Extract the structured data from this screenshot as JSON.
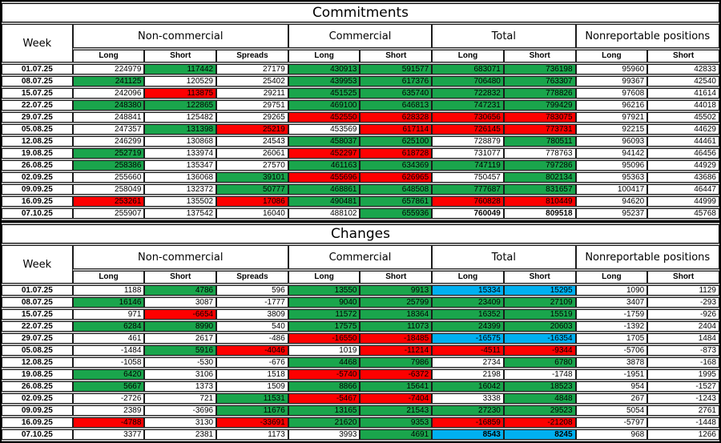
{
  "colors": {
    "green": "#1aa54c",
    "red": "#fe0000",
    "blue": "#00b0f0",
    "white": "#ffffff"
  },
  "sections": [
    {
      "title": "Commitments",
      "week_header": "Week",
      "groups": [
        {
          "label": "Non-commercial"
        },
        {
          "label": "Commercial"
        },
        {
          "label": "Total"
        },
        {
          "label": "Nonreportable positions"
        }
      ],
      "subheaders": [
        "Long",
        "Short",
        "Spreads",
        "Long",
        "Short",
        "Long",
        "Short",
        "Long",
        "Short"
      ],
      "rows": [
        {
          "week": "01.07.25",
          "values": [
            "224979",
            "117442",
            "27179",
            "430913",
            "591577",
            "683071",
            "736198",
            "95960",
            "42833"
          ],
          "fills": [
            "w",
            "g",
            "w",
            "g",
            "g",
            "g",
            "g",
            "w",
            "w"
          ],
          "bold": []
        },
        {
          "week": "08.07.25",
          "values": [
            "241125",
            "120529",
            "25402",
            "439953",
            "617376",
            "706480",
            "763307",
            "99367",
            "42540"
          ],
          "fills": [
            "g",
            "w",
            "w",
            "g",
            "g",
            "g",
            "g",
            "w",
            "w"
          ],
          "bold": []
        },
        {
          "week": "15.07.25",
          "values": [
            "242096",
            "113875",
            "29211",
            "451525",
            "635740",
            "722832",
            "778826",
            "97608",
            "41614"
          ],
          "fills": [
            "w",
            "r",
            "w",
            "g",
            "g",
            "g",
            "g",
            "w",
            "w"
          ],
          "bold": []
        },
        {
          "week": "22.07.25",
          "values": [
            "248380",
            "122865",
            "29751",
            "469100",
            "646813",
            "747231",
            "799429",
            "96216",
            "44018"
          ],
          "fills": [
            "g",
            "g",
            "w",
            "g",
            "g",
            "g",
            "g",
            "w",
            "w"
          ],
          "bold": []
        },
        {
          "week": "29.07.25",
          "values": [
            "248841",
            "125482",
            "29265",
            "452550",
            "628328",
            "730656",
            "783075",
            "97921",
            "45502"
          ],
          "fills": [
            "w",
            "w",
            "w",
            "r",
            "r",
            "r",
            "r",
            "w",
            "w"
          ],
          "bold": []
        },
        {
          "week": "05.08.25",
          "values": [
            "247357",
            "131398",
            "25219",
            "453569",
            "617114",
            "726145",
            "773731",
            "92215",
            "44629"
          ],
          "fills": [
            "w",
            "g",
            "r",
            "w",
            "r",
            "r",
            "r",
            "w",
            "w"
          ],
          "bold": []
        },
        {
          "week": "12.08.25",
          "values": [
            "246299",
            "130868",
            "24543",
            "458037",
            "625100",
            "728879",
            "780511",
            "96093",
            "44461"
          ],
          "fills": [
            "w",
            "w",
            "w",
            "g",
            "g",
            "w",
            "g",
            "w",
            "w"
          ],
          "bold": []
        },
        {
          "week": "19.08.25",
          "values": [
            "252719",
            "133974",
            "26061",
            "452297",
            "618728",
            "731077",
            "778763",
            "94142",
            "46456"
          ],
          "fills": [
            "g",
            "w",
            "w",
            "r",
            "r",
            "w",
            "w",
            "w",
            "w"
          ],
          "bold": []
        },
        {
          "week": "26.08.25",
          "values": [
            "258386",
            "135347",
            "27570",
            "461163",
            "634369",
            "747119",
            "797286",
            "95096",
            "44929"
          ],
          "fills": [
            "g",
            "w",
            "w",
            "g",
            "g",
            "g",
            "g",
            "w",
            "w"
          ],
          "bold": []
        },
        {
          "week": "02.09.25",
          "values": [
            "255660",
            "136068",
            "39101",
            "455696",
            "626965",
            "750457",
            "802134",
            "95363",
            "43686"
          ],
          "fills": [
            "w",
            "w",
            "g",
            "r",
            "r",
            "w",
            "g",
            "w",
            "w"
          ],
          "bold": []
        },
        {
          "week": "09.09.25",
          "values": [
            "258049",
            "132372",
            "50777",
            "468861",
            "648508",
            "777687",
            "831657",
            "100417",
            "46447"
          ],
          "fills": [
            "w",
            "w",
            "g",
            "g",
            "g",
            "g",
            "g",
            "w",
            "w"
          ],
          "bold": []
        },
        {
          "week": "16.09.25",
          "values": [
            "253261",
            "135502",
            "17086",
            "490481",
            "657861",
            "760828",
            "810449",
            "94620",
            "44999"
          ],
          "fills": [
            "r",
            "w",
            "r",
            "g",
            "g",
            "r",
            "r",
            "w",
            "w"
          ],
          "bold": []
        },
        {
          "week": "07.10.25",
          "values": [
            "255907",
            "137542",
            "16040",
            "488102",
            "655936",
            "760049",
            "809518",
            "95237",
            "45768"
          ],
          "fills": [
            "w",
            "w",
            "w",
            "w",
            "g",
            "w",
            "w",
            "w",
            "w"
          ],
          "bold": [
            5,
            6
          ]
        }
      ]
    },
    {
      "title": "Changes",
      "week_header": "Week",
      "groups": [
        {
          "label": "Non-commercial"
        },
        {
          "label": "Commercial"
        },
        {
          "label": "Total"
        },
        {
          "label": "Nonreportable positions"
        }
      ],
      "subheaders": [
        "Long",
        "Short",
        "Spreads",
        "Long",
        "Short",
        "Long",
        "Short",
        "Long",
        "Short"
      ],
      "rows": [
        {
          "week": "01.07.25",
          "values": [
            "1188",
            "4786",
            "596",
            "13550",
            "9913",
            "15334",
            "15295",
            "1090",
            "1129"
          ],
          "fills": [
            "w",
            "g",
            "w",
            "g",
            "g",
            "b",
            "b",
            "w",
            "w"
          ],
          "bold": []
        },
        {
          "week": "08.07.25",
          "values": [
            "16146",
            "3087",
            "-1777",
            "9040",
            "25799",
            "23409",
            "27109",
            "3407",
            "-293"
          ],
          "fills": [
            "g",
            "w",
            "w",
            "g",
            "g",
            "g",
            "g",
            "w",
            "w"
          ],
          "bold": []
        },
        {
          "week": "15.07.25",
          "values": [
            "971",
            "-6654",
            "3809",
            "11572",
            "18364",
            "16352",
            "15519",
            "-1759",
            "-926"
          ],
          "fills": [
            "w",
            "r",
            "w",
            "g",
            "g",
            "g",
            "g",
            "w",
            "w"
          ],
          "bold": []
        },
        {
          "week": "22.07.25",
          "values": [
            "6284",
            "8990",
            "540",
            "17575",
            "11073",
            "24399",
            "20603",
            "-1392",
            "2404"
          ],
          "fills": [
            "g",
            "g",
            "w",
            "g",
            "g",
            "g",
            "g",
            "w",
            "w"
          ],
          "bold": []
        },
        {
          "week": "29.07.25",
          "values": [
            "461",
            "2617",
            "-486",
            "-16550",
            "-18485",
            "-16575",
            "-16354",
            "1705",
            "1484"
          ],
          "fills": [
            "w",
            "w",
            "w",
            "r",
            "r",
            "b",
            "b",
            "w",
            "w"
          ],
          "bold": []
        },
        {
          "week": "05.08.25",
          "values": [
            "-1484",
            "5916",
            "-4046",
            "1019",
            "-11214",
            "-4511",
            "-9344",
            "-5706",
            "-873"
          ],
          "fills": [
            "w",
            "g",
            "r",
            "w",
            "r",
            "r",
            "r",
            "w",
            "w"
          ],
          "bold": []
        },
        {
          "week": "12.08.25",
          "values": [
            "-1058",
            "-530",
            "-676",
            "4468",
            "7986",
            "2734",
            "6780",
            "3878",
            "-168"
          ],
          "fills": [
            "w",
            "w",
            "w",
            "g",
            "g",
            "w",
            "g",
            "w",
            "w"
          ],
          "bold": []
        },
        {
          "week": "19.08.25",
          "values": [
            "6420",
            "3106",
            "1518",
            "-5740",
            "-6372",
            "2198",
            "-1748",
            "-1951",
            "1995"
          ],
          "fills": [
            "g",
            "w",
            "w",
            "r",
            "r",
            "w",
            "w",
            "w",
            "w"
          ],
          "bold": []
        },
        {
          "week": "26.08.25",
          "values": [
            "5667",
            "1373",
            "1509",
            "8866",
            "15641",
            "16042",
            "18523",
            "954",
            "-1527"
          ],
          "fills": [
            "g",
            "w",
            "w",
            "g",
            "g",
            "g",
            "g",
            "w",
            "w"
          ],
          "bold": []
        },
        {
          "week": "02.09.25",
          "values": [
            "-2726",
            "721",
            "11531",
            "-5467",
            "-7404",
            "3338",
            "4848",
            "267",
            "-1243"
          ],
          "fills": [
            "w",
            "w",
            "g",
            "r",
            "r",
            "w",
            "g",
            "w",
            "w"
          ],
          "bold": []
        },
        {
          "week": "09.09.25",
          "values": [
            "2389",
            "-3696",
            "11676",
            "13165",
            "21543",
            "27230",
            "29523",
            "5054",
            "2761"
          ],
          "fills": [
            "w",
            "w",
            "g",
            "g",
            "g",
            "g",
            "g",
            "w",
            "w"
          ],
          "bold": []
        },
        {
          "week": "16.09.25",
          "values": [
            "-4788",
            "3130",
            "-33691",
            "21620",
            "9353",
            "-16859",
            "-21208",
            "-5797",
            "-1448"
          ],
          "fills": [
            "r",
            "w",
            "r",
            "g",
            "g",
            "r",
            "r",
            "w",
            "w"
          ],
          "bold": []
        },
        {
          "week": "07.10.25",
          "values": [
            "3377",
            "2381",
            "1173",
            "3993",
            "4691",
            "8543",
            "8245",
            "968",
            "1266"
          ],
          "fills": [
            "w",
            "w",
            "w",
            "w",
            "g",
            "b",
            "b",
            "w",
            "w"
          ],
          "bold": [
            5,
            6
          ]
        }
      ]
    }
  ]
}
